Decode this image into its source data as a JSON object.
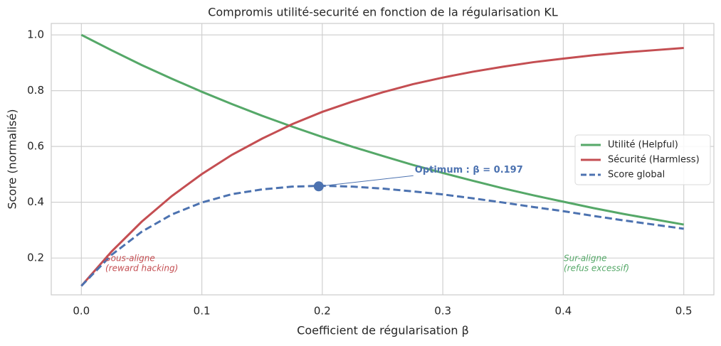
{
  "chart_data": {
    "type": "line",
    "title": "Compromis utilité-securité en fonction de la régularisation KL",
    "x_label": "Coefficient de régularisation β",
    "y_label": "Score (normalisé)",
    "x": [
      0,
      0.025,
      0.05,
      0.075,
      0.1,
      0.125,
      0.15,
      0.175,
      0.2,
      0.225,
      0.25,
      0.275,
      0.3,
      0.325,
      0.35,
      0.375,
      0.4,
      0.425,
      0.45,
      0.475,
      0.5
    ],
    "series": [
      {
        "name": "Utilité (Helpful)",
        "color": "#55a868",
        "style": "solid",
        "values": [
          1.0,
          0.945,
          0.892,
          0.843,
          0.796,
          0.752,
          0.71,
          0.671,
          0.634,
          0.599,
          0.566,
          0.534,
          0.505,
          0.477,
          0.45,
          0.425,
          0.402,
          0.379,
          0.358,
          0.339,
          0.32
        ]
      },
      {
        "name": "Sécurité (Harmless)",
        "color": "#c44e52",
        "style": "solid",
        "values": [
          0.1,
          0.223,
          0.33,
          0.422,
          0.501,
          0.57,
          0.628,
          0.68,
          0.724,
          0.761,
          0.794,
          0.823,
          0.847,
          0.868,
          0.886,
          0.902,
          0.915,
          0.927,
          0.937,
          0.945,
          0.953
        ]
      },
      {
        "name": "Score global",
        "color": "#4c72b0",
        "style": "dashed",
        "values": [
          0.1,
          0.211,
          0.294,
          0.356,
          0.399,
          0.429,
          0.446,
          0.456,
          0.459,
          0.456,
          0.449,
          0.439,
          0.428,
          0.414,
          0.399,
          0.383,
          0.368,
          0.351,
          0.335,
          0.32,
          0.305
        ]
      }
    ],
    "optimum": {
      "x": 0.197,
      "y": 0.457,
      "label": "Optimum : β = 0.197",
      "color": "#4c72b0"
    },
    "annotations": [
      {
        "lines": [
          "Sous-aligne",
          "(reward hacking)"
        ],
        "color": "#c44e52"
      },
      {
        "lines": [
          "Sur-aligne",
          "(refus excessif)"
        ],
        "color": "#55a868"
      }
    ],
    "xlim": [
      -0.025,
      0.525
    ],
    "ylim": [
      0.068,
      1.041
    ],
    "xticks": [
      {
        "value": 0,
        "label": "0.0"
      },
      0.1,
      0.2,
      0.3,
      0.4,
      0.5
    ],
    "yticks": [
      0.2,
      0.4,
      0.6,
      0.8,
      {
        "value": 1,
        "label": "1.0"
      }
    ],
    "grid": true,
    "legend": "right"
  }
}
